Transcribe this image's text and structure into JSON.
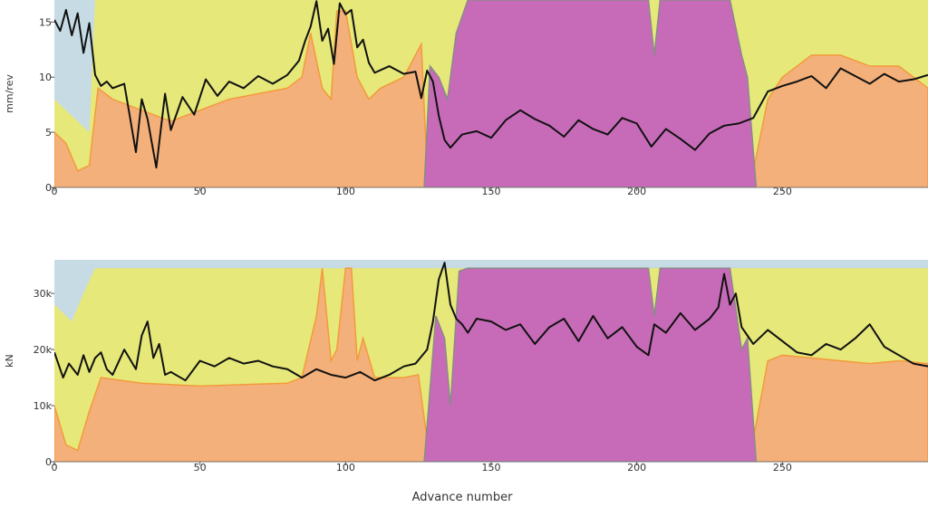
{
  "colors": {
    "blue_band": "#c6dbe3",
    "yellow_band": "#e6e87a",
    "orange_band": "#f4b07a",
    "orange_edge": "#f39a3c",
    "magenta_band": "#c76bb8",
    "magenta_edge": "#8a8a8a",
    "series_line": "#111111"
  },
  "xlabel": "Advance number",
  "chart_data": [
    {
      "type": "area",
      "ylabel": "mm/rev",
      "xlim": [
        0,
        300
      ],
      "ylim": [
        0,
        17
      ],
      "xticks": [
        0,
        50,
        100,
        150,
        200,
        250
      ],
      "yticks": [
        0,
        5,
        10,
        15
      ],
      "ytick_labels": [
        "0",
        "5",
        "10",
        "15"
      ],
      "bands": [
        {
          "name": "blue",
          "x": [
            0,
            300
          ],
          "y": [
            17,
            17
          ]
        },
        {
          "name": "yellow",
          "x": [
            0,
            12,
            14,
            30,
            85,
            90,
            96,
            100,
            104,
            110,
            120,
            128,
            135,
            140,
            240,
            245,
            260,
            300
          ],
          "y": [
            8,
            5,
            17,
            17,
            17,
            17,
            17,
            17,
            17,
            17,
            17,
            17,
            17,
            17,
            17,
            17,
            17,
            17
          ]
        },
        {
          "name": "orange",
          "x": [
            0,
            4,
            8,
            12,
            15,
            20,
            30,
            40,
            60,
            80,
            85,
            88,
            92,
            95,
            97,
            100,
            104,
            108,
            112,
            120,
            126,
            128,
            240,
            245,
            250,
            260,
            270,
            280,
            290,
            300
          ],
          "y": [
            5,
            4,
            1.5,
            2,
            9,
            8,
            7,
            6,
            8,
            9,
            10,
            14,
            9,
            8,
            16,
            16,
            10,
            8,
            9,
            10,
            13,
            1.5,
            1.5,
            8,
            10,
            12,
            12,
            11,
            11,
            9
          ]
        },
        {
          "name": "magenta",
          "x": [
            127,
            129,
            132,
            135,
            138,
            142,
            200,
            204,
            206,
            208,
            228,
            232,
            236,
            238,
            241
          ],
          "y": [
            0,
            11,
            10,
            8,
            14,
            17,
            17,
            17,
            12,
            17,
            17,
            17,
            12,
            10,
            0
          ]
        }
      ],
      "series": [
        {
          "x": [
            0,
            2,
            4,
            6,
            8,
            10,
            12,
            14,
            16,
            18,
            20,
            24,
            28,
            30,
            32,
            35,
            38,
            40,
            44,
            48,
            52,
            56,
            60,
            65,
            70,
            75,
            80,
            84,
            86,
            88,
            90,
            92,
            94,
            96,
            98,
            100,
            102,
            104,
            106,
            108,
            110,
            115,
            120,
            124,
            126,
            128,
            130,
            132,
            134,
            136,
            140,
            145,
            150,
            155,
            160,
            165,
            170,
            175,
            180,
            185,
            190,
            195,
            200,
            205,
            210,
            215,
            220,
            225,
            230,
            235,
            240,
            245,
            250,
            255,
            260,
            265,
            270,
            275,
            280,
            285,
            290,
            295,
            300
          ],
          "y": [
            15.2,
            14.2,
            16.1,
            13.8,
            15.8,
            12.2,
            14.9,
            10.2,
            9.2,
            9.6,
            9.0,
            9.4,
            3.2,
            8.0,
            6.2,
            1.8,
            8.5,
            5.2,
            8.2,
            6.6,
            9.8,
            8.3,
            9.6,
            9.0,
            10.1,
            9.4,
            10.2,
            11.5,
            13.2,
            14.6,
            16.9,
            13.3,
            14.4,
            11.2,
            16.7,
            15.7,
            16.1,
            12.7,
            13.4,
            11.3,
            10.4,
            11.0,
            10.3,
            10.5,
            8.1,
            10.6,
            9.6,
            6.5,
            4.3,
            3.6,
            4.8,
            5.1,
            4.5,
            6.1,
            7.0,
            6.2,
            5.6,
            4.6,
            6.1,
            5.3,
            4.8,
            6.3,
            5.8,
            3.7,
            5.3,
            4.4,
            3.4,
            4.9,
            5.6,
            5.8,
            6.3,
            8.7,
            9.2,
            9.6,
            10.1,
            9.0,
            10.8,
            10.1,
            9.4,
            10.3,
            9.6,
            9.8,
            10.2
          ]
        }
      ]
    },
    {
      "type": "area",
      "ylabel": "kN",
      "xlim": [
        0,
        300
      ],
      "ylim": [
        0,
        36000
      ],
      "xticks": [
        0,
        50,
        100,
        150,
        200,
        250
      ],
      "yticks": [
        0,
        10000,
        20000,
        30000
      ],
      "ytick_labels": [
        "0",
        "10k",
        "20k",
        "30k"
      ],
      "bands": [
        {
          "name": "blue",
          "x": [
            0,
            300
          ],
          "y": [
            36000,
            36000
          ]
        },
        {
          "name": "yellow",
          "x": [
            0,
            6,
            10,
            14,
            18,
            300
          ],
          "y": [
            28000,
            25000,
            30000,
            34500,
            34500,
            34500
          ]
        },
        {
          "name": "orange",
          "x": [
            0,
            4,
            8,
            12,
            16,
            30,
            50,
            80,
            85,
            90,
            92,
            95,
            97,
            100,
            102,
            104,
            106,
            110,
            120,
            125,
            128,
            240,
            245,
            250,
            260,
            270,
            280,
            290,
            300
          ],
          "y": [
            10000,
            3000,
            2000,
            9000,
            15000,
            14000,
            13500,
            14000,
            15000,
            26000,
            34500,
            18000,
            20000,
            34500,
            34500,
            18000,
            22000,
            15000,
            15000,
            15500,
            4000,
            4000,
            18000,
            19000,
            18500,
            18000,
            17500,
            18000,
            17500
          ]
        },
        {
          "name": "magenta",
          "x": [
            127,
            131,
            134,
            136,
            139,
            142,
            200,
            204,
            206,
            208,
            228,
            232,
            236,
            238,
            241
          ],
          "y": [
            0,
            26000,
            22000,
            10000,
            34000,
            34500,
            34500,
            34500,
            26000,
            34500,
            34500,
            34500,
            20000,
            22000,
            0
          ]
        }
      ],
      "series": [
        {
          "x": [
            0,
            3,
            5,
            8,
            10,
            12,
            14,
            16,
            18,
            20,
            24,
            28,
            30,
            32,
            34,
            36,
            38,
            40,
            45,
            50,
            55,
            60,
            65,
            70,
            75,
            80,
            85,
            90,
            95,
            100,
            105,
            110,
            115,
            120,
            124,
            128,
            130,
            132,
            134,
            136,
            138,
            140,
            142,
            145,
            150,
            155,
            160,
            165,
            170,
            175,
            180,
            185,
            190,
            195,
            200,
            204,
            206,
            210,
            215,
            220,
            225,
            228,
            230,
            232,
            234,
            236,
            238,
            240,
            245,
            250,
            255,
            260,
            265,
            270,
            275,
            280,
            285,
            290,
            295,
            300
          ],
          "y": [
            19500,
            15000,
            17500,
            15500,
            19000,
            16000,
            18500,
            19500,
            16500,
            15500,
            20000,
            16500,
            22500,
            25000,
            18500,
            21000,
            15500,
            16000,
            14500,
            18000,
            17000,
            18500,
            17500,
            18000,
            17000,
            16500,
            15000,
            16500,
            15500,
            15000,
            16000,
            14500,
            15500,
            17000,
            17500,
            20000,
            25000,
            32500,
            35500,
            28000,
            25500,
            24500,
            23000,
            25500,
            25000,
            23500,
            24500,
            21000,
            24000,
            25500,
            21500,
            26000,
            22000,
            24000,
            20500,
            19000,
            24500,
            23000,
            26500,
            23500,
            25500,
            27500,
            33500,
            28000,
            30000,
            24000,
            22500,
            21000,
            23500,
            21500,
            19500,
            19000,
            21000,
            20000,
            22000,
            24500,
            20500,
            19000,
            17500,
            17000
          ]
        }
      ]
    }
  ]
}
